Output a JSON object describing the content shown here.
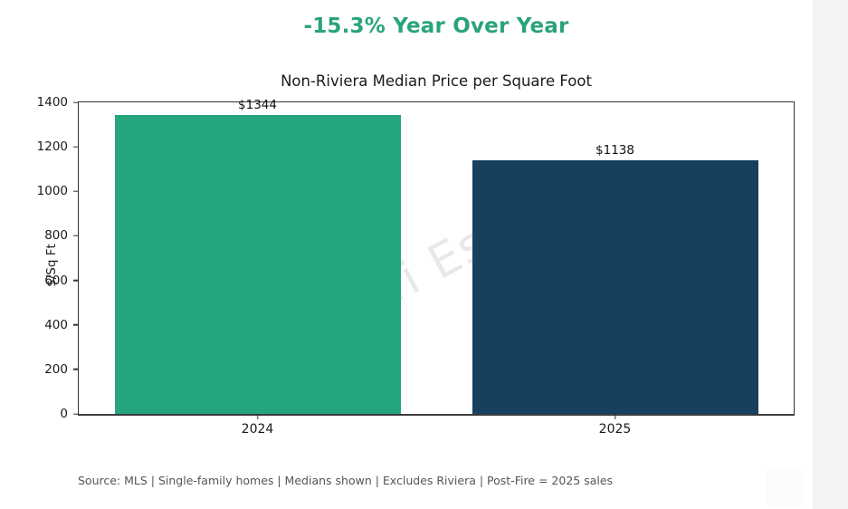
{
  "header": {
    "title": "-15.3% Year Over Year"
  },
  "chart_data": {
    "type": "bar",
    "title": "Non-Riviera Median Price per Square Foot",
    "categories": [
      "2024",
      "2025"
    ],
    "values": [
      1344,
      1138
    ],
    "bar_labels": [
      "$1344",
      "$1138"
    ],
    "bar_colors": [
      "#25a57d",
      "#16405d"
    ],
    "xlabel": "",
    "ylabel": "$/Sq Ft",
    "ylim": [
      0,
      1400
    ],
    "yticks": [
      0,
      200,
      400,
      600,
      800,
      1000,
      1200,
      1400
    ],
    "grid": false,
    "legend": "none"
  },
  "watermark": {
    "text": "Amalfi Estates"
  },
  "footer": {
    "source": "Source: MLS | Single-family homes | Medians shown | Excludes Riviera | Post-Fire = 2025 sales"
  },
  "colors": {
    "title_green": "#2aa37b",
    "bar_green": "#25a57d",
    "bar_navy": "#16405d",
    "side_strip": "#f2f4f6",
    "axis": "#333333",
    "source_text": "#555555"
  }
}
